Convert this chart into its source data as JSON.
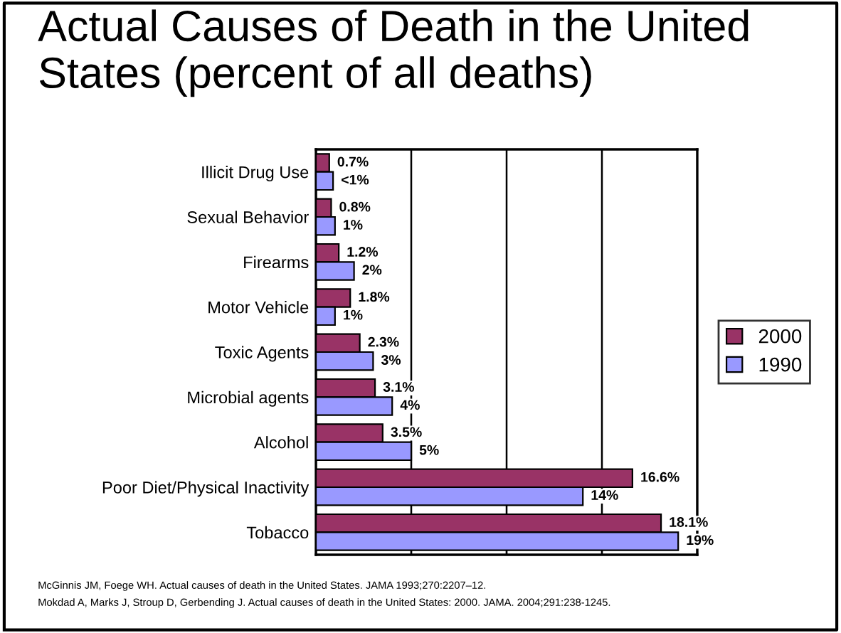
{
  "chart_data": {
    "type": "bar",
    "orientation": "horizontal",
    "title": "Actual Causes of Death in the United States (percent of all deaths)",
    "categories": [
      "Illicit Drug Use",
      "Sexual Behavior",
      "Firearms",
      "Motor Vehicle",
      "Toxic Agents",
      "Microbial agents",
      "Alcohol",
      "Poor Diet/Physical Inactivity",
      "Tobacco"
    ],
    "series": [
      {
        "name": "2000",
        "color": "#993366",
        "values": [
          0.7,
          0.8,
          1.2,
          1.8,
          2.3,
          3.1,
          3.5,
          16.6,
          18.1
        ],
        "value_labels": [
          "0.7%",
          "0.8%",
          "1.2%",
          "1.8%",
          "2.3%",
          "3.1%",
          "3.5%",
          "16.6%",
          "18.1%"
        ]
      },
      {
        "name": "1990",
        "color": "#9999ff",
        "values": [
          0.9,
          1,
          2,
          1,
          3,
          4,
          5,
          14,
          19
        ],
        "value_labels": [
          "<1%",
          "1%",
          "2%",
          "1%",
          "3%",
          "4%",
          "5%",
          "14%",
          "19%"
        ]
      }
    ],
    "xlim": [
      0,
      20
    ],
    "xticks": [
      {
        "value": 0,
        "label": null
      },
      {
        "value": 5,
        "label": null
      },
      {
        "value": 10,
        "label": null
      },
      {
        "value": 15,
        "label": null
      },
      {
        "value": 20,
        "label": null
      }
    ],
    "tick_labels": "y",
    "grid": "x",
    "legend": "right",
    "annotations": [
      "McGinnis JM, Foege WH. Actual causes of death in the United States. JAMA 1993;270:2207–12.",
      "Mokdad A, Marks J, Stroup D, Gerbending J. Actual causes of death in the United States: 2000. JAMA. 2004;291:238-1245."
    ]
  }
}
